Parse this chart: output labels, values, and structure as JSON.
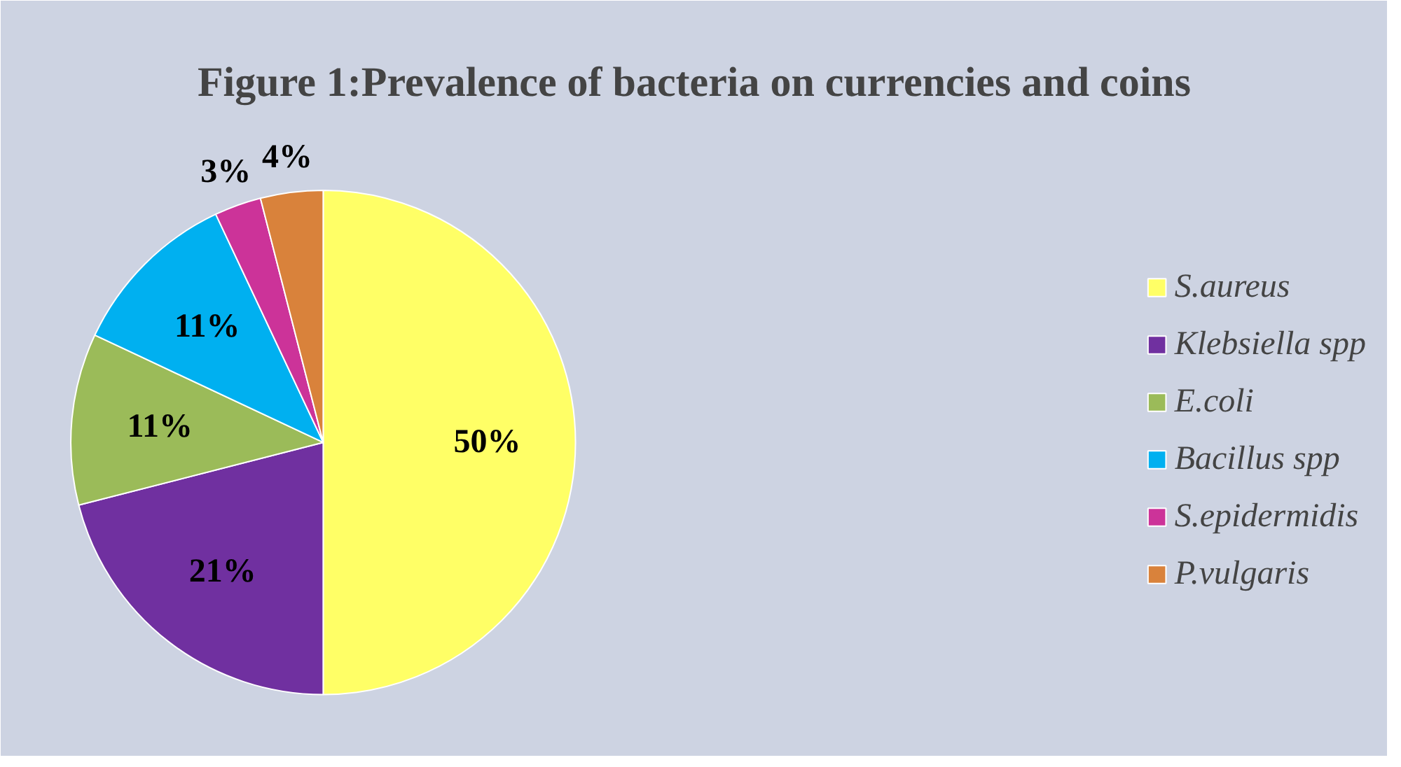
{
  "chart_data": {
    "type": "pie",
    "title": "Figure 1:Prevalence of bacteria on currencies and coins",
    "categories": [
      "S.aureus",
      "Klebsiella spp",
      "E.coli",
      "Bacillus spp",
      "S.epidermidis",
      "P.vulgaris"
    ],
    "values": [
      50,
      21,
      11,
      11,
      3,
      4
    ],
    "colors": [
      "#ffff66",
      "#7030a0",
      "#9bbb59",
      "#00b0f0",
      "#cc3399",
      "#d9823b"
    ],
    "value_labels": [
      "50%",
      "21%",
      "11%",
      "11%",
      "3%",
      "4%"
    ],
    "legend": "right"
  }
}
